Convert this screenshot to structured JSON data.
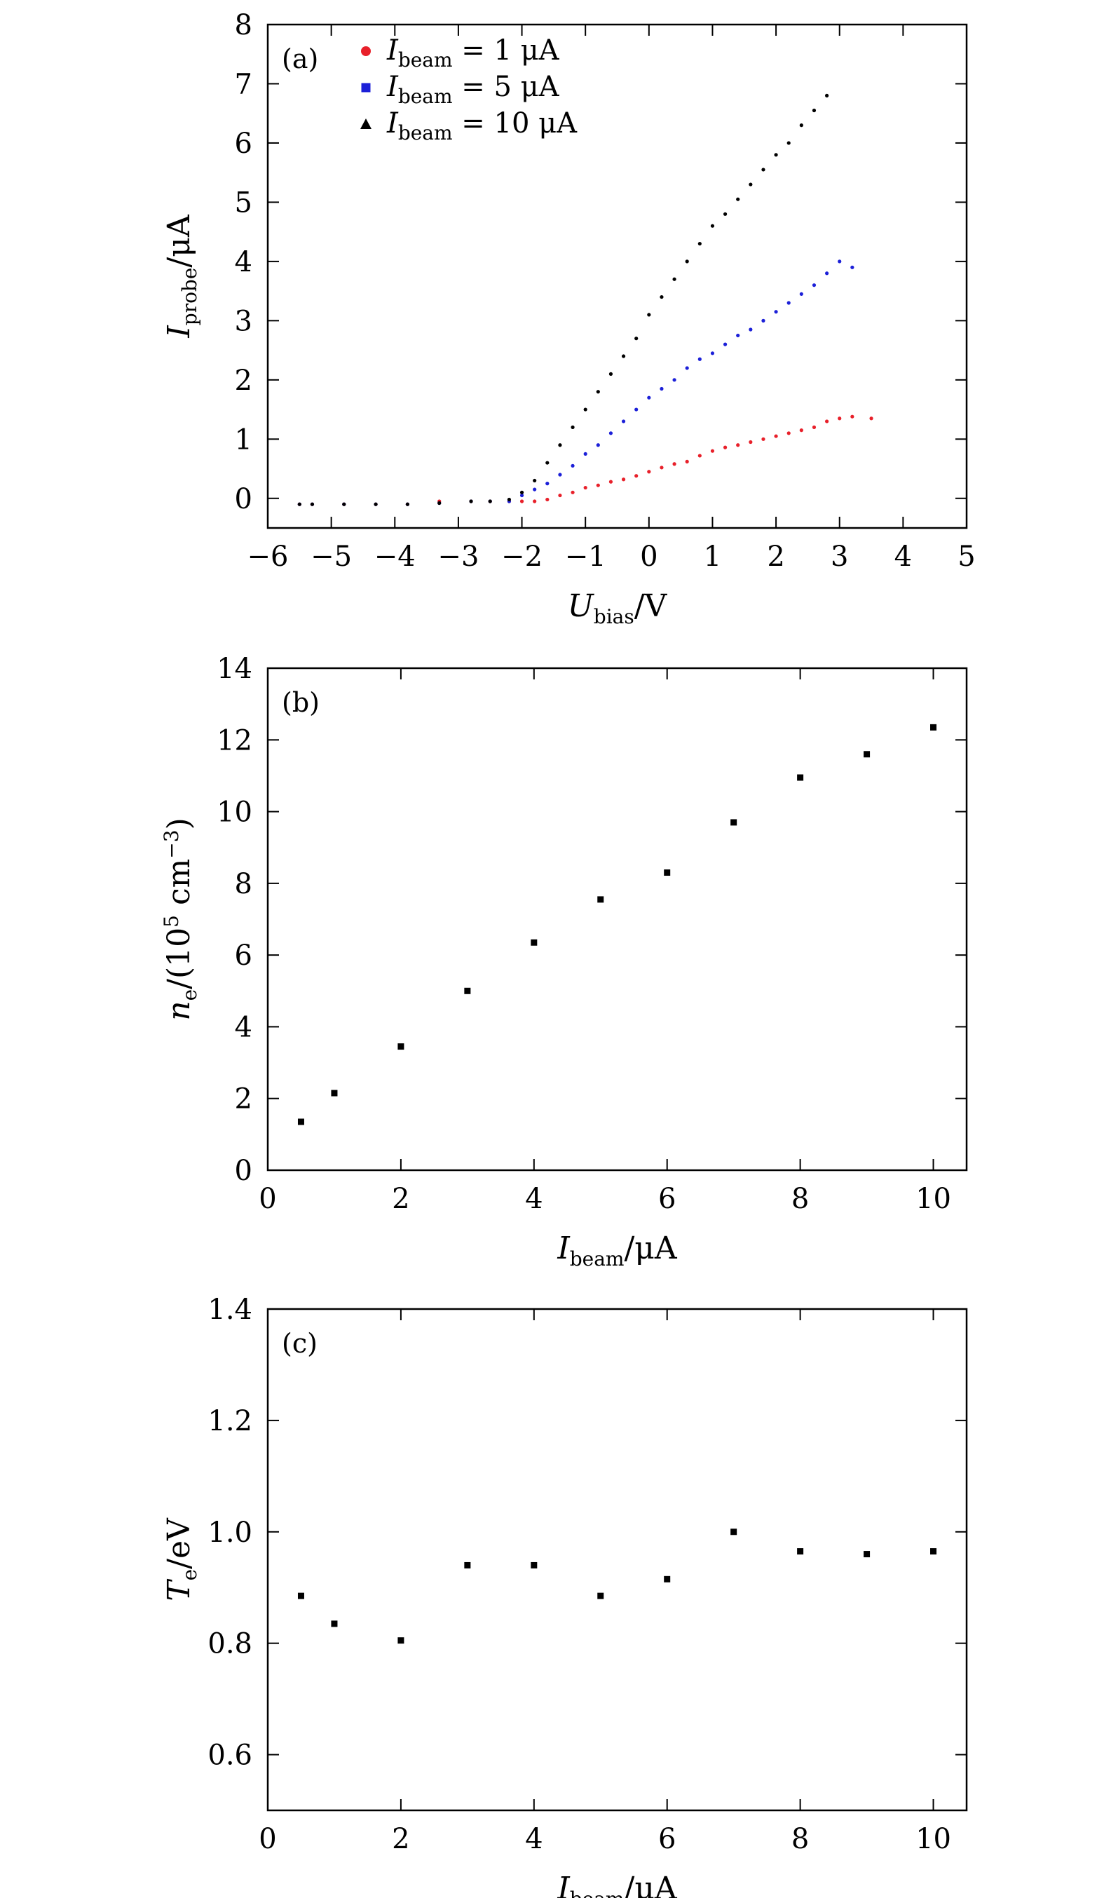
{
  "chart_data": [
    {
      "type": "scatter",
      "panel_label": "(a)",
      "xlabel": "U_bias/V",
      "xlabel_main": "U",
      "xlabel_sub": "bias",
      "xlabel_unit": "/V",
      "ylabel": "I_probe/μA",
      "ylabel_main": "I",
      "ylabel_sub": "probe",
      "ylabel_unit": "/μA",
      "xlim": [
        -6,
        5
      ],
      "ylim": [
        -0.5,
        8
      ],
      "xticks": [
        -6,
        -5,
        -4,
        -3,
        -2,
        -1,
        0,
        1,
        2,
        3,
        4,
        5
      ],
      "xtick_labels": [
        "−6",
        "−5",
        "−4",
        "−3",
        "−2",
        "−1",
        "0",
        "1",
        "2",
        "3",
        "4",
        "5"
      ],
      "yticks": [
        0,
        1,
        2,
        3,
        4,
        5,
        6,
        7,
        8
      ],
      "ytick_labels": [
        "0",
        "1",
        "2",
        "3",
        "4",
        "5",
        "6",
        "7",
        "8"
      ],
      "legend_position": "top-left",
      "series": [
        {
          "name": "I_beam = 1 μA",
          "legend_main": "I",
          "legend_sub": "beam",
          "legend_rest": " = 1 μA",
          "color": "#e8202a",
          "marker": "circle",
          "x": [
            -5.5,
            -5.3,
            -4.8,
            -4.3,
            -3.8,
            -3.3,
            -2.8,
            -2.5,
            -2.2,
            -2.0,
            -1.8,
            -1.6,
            -1.4,
            -1.2,
            -1.0,
            -0.8,
            -0.6,
            -0.4,
            -0.2,
            0.0,
            0.2,
            0.4,
            0.6,
            0.8,
            1.0,
            1.2,
            1.4,
            1.6,
            1.8,
            2.0,
            2.2,
            2.4,
            2.6,
            2.8,
            3.0,
            3.2,
            3.5
          ],
          "y": [
            -0.1,
            -0.1,
            -0.1,
            -0.1,
            -0.1,
            -0.05,
            -0.05,
            -0.05,
            -0.05,
            -0.05,
            -0.05,
            -0.02,
            0.05,
            0.1,
            0.18,
            0.22,
            0.28,
            0.32,
            0.38,
            0.45,
            0.52,
            0.58,
            0.62,
            0.72,
            0.8,
            0.86,
            0.9,
            0.95,
            1.0,
            1.05,
            1.1,
            1.15,
            1.2,
            1.3,
            1.35,
            1.38,
            1.35
          ]
        },
        {
          "name": "I_beam = 5 μA",
          "legend_main": "I",
          "legend_sub": "beam",
          "legend_rest": " = 5 μA",
          "color": "#1c20d8",
          "marker": "square",
          "x": [
            -5.5,
            -5.3,
            -4.8,
            -4.3,
            -3.8,
            -3.3,
            -2.8,
            -2.5,
            -2.2,
            -2.0,
            -1.8,
            -1.6,
            -1.4,
            -1.2,
            -1.0,
            -0.8,
            -0.6,
            -0.4,
            -0.2,
            0.0,
            0.2,
            0.4,
            0.6,
            0.8,
            1.0,
            1.2,
            1.4,
            1.6,
            1.8,
            2.0,
            2.2,
            2.4,
            2.6,
            2.8,
            3.0,
            3.2
          ],
          "y": [
            -0.1,
            -0.1,
            -0.1,
            -0.1,
            -0.1,
            -0.08,
            -0.05,
            -0.05,
            -0.05,
            0.05,
            0.15,
            0.25,
            0.4,
            0.55,
            0.75,
            0.9,
            1.1,
            1.3,
            1.5,
            1.7,
            1.85,
            2.0,
            2.2,
            2.35,
            2.45,
            2.6,
            2.75,
            2.85,
            3.0,
            3.15,
            3.3,
            3.45,
            3.6,
            3.8,
            4.0,
            3.9
          ]
        },
        {
          "name": "I_beam = 10 μA",
          "legend_main": "I",
          "legend_sub": "beam",
          "legend_rest": " = 10 μA",
          "color": "#000000",
          "marker": "triangle",
          "x": [
            -5.5,
            -5.3,
            -4.8,
            -4.3,
            -3.8,
            -3.3,
            -2.8,
            -2.5,
            -2.2,
            -2.0,
            -1.8,
            -1.6,
            -1.4,
            -1.2,
            -1.0,
            -0.8,
            -0.6,
            -0.4,
            -0.2,
            0.0,
            0.2,
            0.4,
            0.6,
            0.8,
            1.0,
            1.2,
            1.4,
            1.6,
            1.8,
            2.0,
            2.2,
            2.4,
            2.6,
            2.8
          ],
          "y": [
            -0.1,
            -0.1,
            -0.1,
            -0.1,
            -0.1,
            -0.08,
            -0.05,
            -0.05,
            -0.02,
            0.1,
            0.3,
            0.6,
            0.9,
            1.2,
            1.5,
            1.8,
            2.1,
            2.4,
            2.7,
            3.1,
            3.4,
            3.7,
            4.0,
            4.3,
            4.6,
            4.8,
            5.05,
            5.3,
            5.55,
            5.8,
            6.0,
            6.3,
            6.55,
            6.8
          ]
        }
      ]
    },
    {
      "type": "scatter",
      "panel_label": "(b)",
      "xlabel": "I_beam/μA",
      "xlabel_main": "I",
      "xlabel_sub": "beam",
      "xlabel_unit": "/μA",
      "ylabel": "n_e/(10^5 cm^−3)",
      "ylabel_main": "n",
      "ylabel_sub": "e",
      "ylabel_pre": "/(10",
      "ylabel_exp": "5",
      "ylabel_mid": " cm",
      "ylabel_exp2": "−3",
      "ylabel_post": ")",
      "xlim": [
        0,
        10.5
      ],
      "ylim": [
        0,
        14
      ],
      "xticks": [
        0,
        2,
        4,
        6,
        8,
        10
      ],
      "xtick_labels": [
        "0",
        "2",
        "4",
        "6",
        "8",
        "10"
      ],
      "yticks": [
        0,
        2,
        4,
        6,
        8,
        10,
        12,
        14
      ],
      "ytick_labels": [
        "0",
        "2",
        "4",
        "6",
        "8",
        "10",
        "12",
        "14"
      ],
      "series": [
        {
          "color": "#000000",
          "marker": "square",
          "x": [
            0.5,
            1,
            2,
            3,
            4,
            5,
            6,
            7,
            8,
            9,
            10
          ],
          "y": [
            1.35,
            2.15,
            3.45,
            5.0,
            6.35,
            7.55,
            8.3,
            9.7,
            10.95,
            11.6,
            12.35
          ]
        }
      ]
    },
    {
      "type": "scatter",
      "panel_label": "(c)",
      "xlabel": "I_beam/μA",
      "xlabel_main": "I",
      "xlabel_sub": "beam",
      "xlabel_unit": "/μA",
      "ylabel": "T_e/eV",
      "ylabel_main": "T",
      "ylabel_sub": "e",
      "ylabel_unit": "/eV",
      "xlim": [
        0,
        10.5
      ],
      "ylim": [
        0.5,
        1.4
      ],
      "xticks": [
        0,
        2,
        4,
        6,
        8,
        10
      ],
      "xtick_labels": [
        "0",
        "2",
        "4",
        "6",
        "8",
        "10"
      ],
      "yticks": [
        0.6,
        0.8,
        1.0,
        1.2,
        1.4
      ],
      "ytick_labels": [
        "0.6",
        "0.8",
        "1.0",
        "1.2",
        "1.4"
      ],
      "series": [
        {
          "color": "#000000",
          "marker": "square",
          "x": [
            0.5,
            1,
            2,
            3,
            4,
            5,
            6,
            7,
            8,
            9,
            10
          ],
          "y": [
            0.885,
            0.835,
            0.805,
            0.94,
            0.94,
            0.885,
            0.915,
            1.0,
            0.965,
            0.96,
            0.965
          ]
        }
      ]
    }
  ]
}
